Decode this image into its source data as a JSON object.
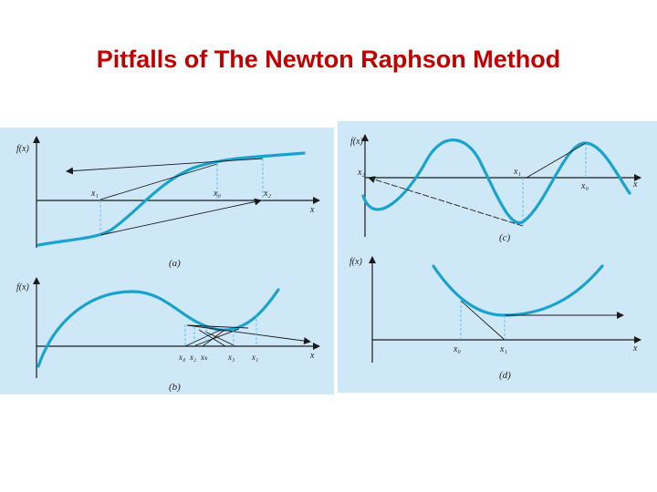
{
  "title": "Pitfalls of The Newton Raphson Method",
  "colors": {
    "title": "#c00000",
    "panel_bg": "#cfe8f7",
    "curve": "#19a3cc"
  },
  "panels": {
    "a": {
      "caption": "(a)",
      "ylabel": "f(x)",
      "xlabel": "x",
      "x1": "x₁",
      "x0": "x₀",
      "x2": "x₂"
    },
    "b": {
      "caption": "(b)",
      "ylabel": "f(x)",
      "xlabel": "x",
      "x4": "x₄",
      "x2": "x₂",
      "xk": "xₖ",
      "x3": "x₃",
      "x1": "x₁"
    },
    "c": {
      "caption": "(c)",
      "ylabel": "f(x)",
      "xlabel": "x",
      "x2": "x₂",
      "x1": "x₁",
      "x0": "x₀"
    },
    "d": {
      "caption": "(d)",
      "ylabel": "f(x)",
      "xlabel": "x",
      "x0": "x₀",
      "x1": "x₁"
    }
  }
}
